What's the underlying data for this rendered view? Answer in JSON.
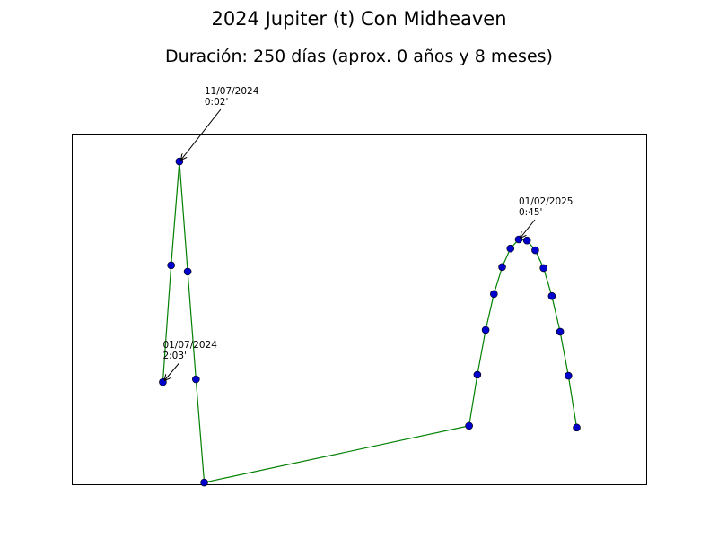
{
  "chart_data": {
    "type": "line",
    "title": "2024 Jupiter (t) Con Midheaven",
    "subtitle": "Duración: 250 días (aprox. 0 años y 8 meses)",
    "x": [
      0,
      5,
      10,
      15,
      20,
      25,
      185,
      190,
      195,
      200,
      205,
      210,
      215,
      220,
      225,
      230,
      235,
      240,
      245,
      250
    ],
    "series": [
      {
        "color": "#008000",
        "marker_color": "#0000cc",
        "values": [
          29.2,
          62.6,
          92.3,
          60.8,
          30.0,
          0.5,
          16.7,
          31.3,
          44.1,
          54.4,
          62.1,
          67.4,
          70.0,
          69.7,
          66.9,
          61.8,
          53.8,
          43.6,
          31.0,
          16.2
        ]
      }
    ],
    "xlim": [
      -55,
      292
    ],
    "ylim": [
      0,
      100
    ],
    "annotations": [
      {
        "date": "01/07/2024",
        "orb": "2:03'"
      },
      {
        "date": "11/07/2024",
        "orb": "0:02'"
      },
      {
        "date": "01/02/2025",
        "orb": "0:45'"
      }
    ]
  }
}
